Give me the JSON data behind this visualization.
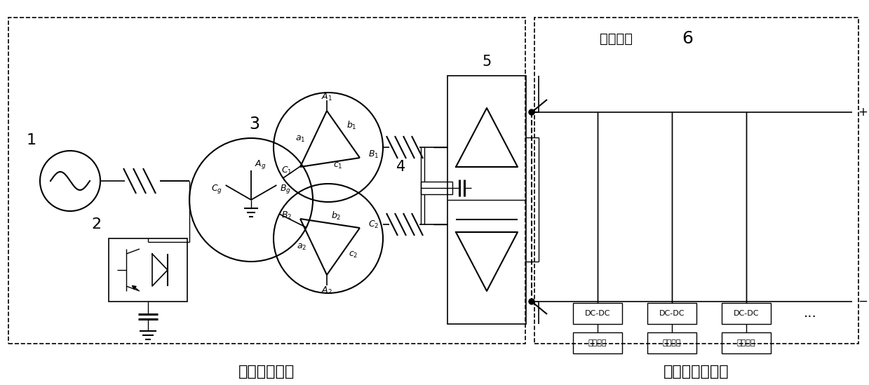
{
  "bg": "#ffffff",
  "lc": "#000000",
  "l1": "1",
  "l2": "2",
  "l3": "3",
  "l4": "4",
  "l5": "5",
  "l6": "6",
  "dc_bus": "直流母线",
  "sys_l": "直流供电系统",
  "chg_l": "充电站充电系统",
  "dcdc": [
    "DC-DC",
    "DC-DC",
    "DC-DC"
  ],
  "batt": [
    "储能电池",
    "动力电池",
    "电动公交"
  ],
  "dots": "...",
  "plus": "+",
  "minus": "−",
  "Ag": "$A_g$",
  "Bg": "$B_g$",
  "Cg": "$C_g$",
  "A1": "$A_1$",
  "B1": "$B_1$",
  "C1": "$C_1$",
  "a1": "$a_1$",
  "b1": "$b_1$",
  "c1": "$c_1$",
  "A2": "$A_2$",
  "B2": "$B_2$",
  "C2": "$C_2$",
  "a2": "$a_2$",
  "b2": "$b_2$",
  "c2": "$c_2$"
}
